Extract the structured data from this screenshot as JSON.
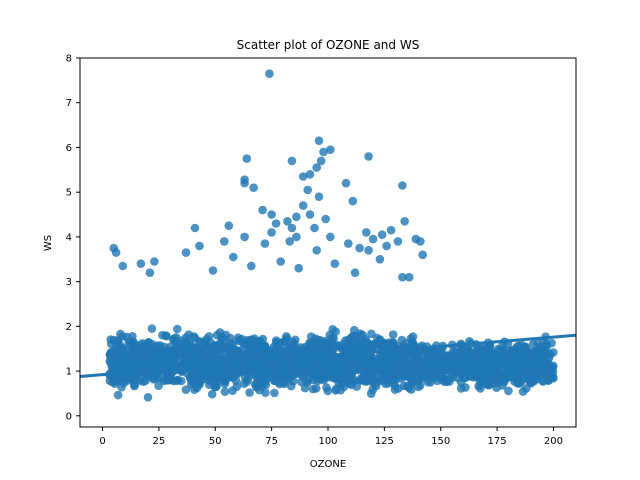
{
  "chart_data": {
    "type": "scatter",
    "title": "Scatter plot of OZONE and WS",
    "xlabel": "OZONE",
    "ylabel": "WS",
    "xlim": [
      -10,
      210
    ],
    "ylim": [
      -0.25,
      8
    ],
    "x_ticks": [
      0,
      25,
      50,
      75,
      100,
      125,
      150,
      175,
      200
    ],
    "y_ticks": [
      0,
      1,
      2,
      3,
      4,
      5,
      6,
      7,
      8
    ],
    "grid": false,
    "legend": "none",
    "point_color": "#1f77b4",
    "point_opacity": 0.8,
    "regression": {
      "intercept": 0.92,
      "slope": 0.0042,
      "x_range": [
        -10,
        210
      ]
    },
    "dense_bands": [
      {
        "x": [
          3,
          200
        ],
        "y_center": 1.2,
        "y_spread": 0.9,
        "count": 2400
      }
    ],
    "outliers": [
      {
        "x": 74,
        "y": 7.65
      },
      {
        "x": 96,
        "y": 6.15
      },
      {
        "x": 101,
        "y": 5.95
      },
      {
        "x": 98,
        "y": 5.9
      },
      {
        "x": 118,
        "y": 5.8
      },
      {
        "x": 64,
        "y": 5.75
      },
      {
        "x": 97,
        "y": 5.7
      },
      {
        "x": 84,
        "y": 5.7
      },
      {
        "x": 95,
        "y": 5.55
      },
      {
        "x": 92,
        "y": 5.4
      },
      {
        "x": 89,
        "y": 5.35
      },
      {
        "x": 63,
        "y": 5.28
      },
      {
        "x": 63,
        "y": 5.2
      },
      {
        "x": 108,
        "y": 5.2
      },
      {
        "x": 133,
        "y": 5.15
      },
      {
        "x": 67,
        "y": 5.1
      },
      {
        "x": 91,
        "y": 5.05
      },
      {
        "x": 96,
        "y": 4.9
      },
      {
        "x": 111,
        "y": 4.8
      },
      {
        "x": 89,
        "y": 4.7
      },
      {
        "x": 71,
        "y": 4.6
      },
      {
        "x": 75,
        "y": 4.5
      },
      {
        "x": 92,
        "y": 4.5
      },
      {
        "x": 86,
        "y": 4.45
      },
      {
        "x": 99,
        "y": 4.4
      },
      {
        "x": 82,
        "y": 4.35
      },
      {
        "x": 134,
        "y": 4.35
      },
      {
        "x": 77,
        "y": 4.3
      },
      {
        "x": 41,
        "y": 4.2
      },
      {
        "x": 56,
        "y": 4.25
      },
      {
        "x": 94,
        "y": 4.2
      },
      {
        "x": 84,
        "y": 4.2
      },
      {
        "x": 128,
        "y": 4.15
      },
      {
        "x": 117,
        "y": 4.1
      },
      {
        "x": 75,
        "y": 4.1
      },
      {
        "x": 124,
        "y": 4.05
      },
      {
        "x": 101,
        "y": 4.0
      },
      {
        "x": 86,
        "y": 4.0
      },
      {
        "x": 63,
        "y": 4.0
      },
      {
        "x": 120,
        "y": 3.95
      },
      {
        "x": 139,
        "y": 3.95
      },
      {
        "x": 131,
        "y": 3.9
      },
      {
        "x": 83,
        "y": 3.9
      },
      {
        "x": 54,
        "y": 3.9
      },
      {
        "x": 72,
        "y": 3.85
      },
      {
        "x": 109,
        "y": 3.85
      },
      {
        "x": 141,
        "y": 3.9
      },
      {
        "x": 126,
        "y": 3.8
      },
      {
        "x": 43,
        "y": 3.8
      },
      {
        "x": 114,
        "y": 3.75
      },
      {
        "x": 5,
        "y": 3.75
      },
      {
        "x": 118,
        "y": 3.7
      },
      {
        "x": 95,
        "y": 3.7
      },
      {
        "x": 6,
        "y": 3.65
      },
      {
        "x": 37,
        "y": 3.65
      },
      {
        "x": 142,
        "y": 3.6
      },
      {
        "x": 58,
        "y": 3.55
      },
      {
        "x": 123,
        "y": 3.5
      },
      {
        "x": 23,
        "y": 3.45
      },
      {
        "x": 79,
        "y": 3.45
      },
      {
        "x": 103,
        "y": 3.4
      },
      {
        "x": 17,
        "y": 3.4
      },
      {
        "x": 9,
        "y": 3.35
      },
      {
        "x": 66,
        "y": 3.35
      },
      {
        "x": 87,
        "y": 3.3
      },
      {
        "x": 133,
        "y": 3.1
      },
      {
        "x": 136,
        "y": 3.1
      },
      {
        "x": 49,
        "y": 3.25
      },
      {
        "x": 21,
        "y": 3.2
      },
      {
        "x": 112,
        "y": 3.2
      }
    ]
  }
}
